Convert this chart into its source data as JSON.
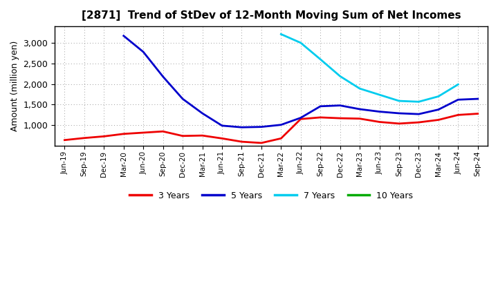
{
  "title": "[2871]  Trend of StDev of 12-Month Moving Sum of Net Incomes",
  "ylabel": "Amount (million yen)",
  "background_color": "#ffffff",
  "grid_color": "#999999",
  "ylim": [
    500,
    3400
  ],
  "yticks": [
    1000,
    1500,
    2000,
    2500,
    3000
  ],
  "x_labels": [
    "Jun-19",
    "Sep-19",
    "Dec-19",
    "Mar-20",
    "Jun-20",
    "Sep-20",
    "Dec-20",
    "Mar-21",
    "Jun-21",
    "Sep-21",
    "Dec-21",
    "Mar-22",
    "Jun-22",
    "Sep-22",
    "Dec-22",
    "Mar-23",
    "Jun-23",
    "Sep-23",
    "Dec-23",
    "Mar-24",
    "Jun-24",
    "Sep-24"
  ],
  "series": {
    "3 Years": {
      "color": "#ee0000",
      "values": [
        640,
        690,
        730,
        790,
        820,
        850,
        740,
        750,
        680,
        600,
        570,
        680,
        1150,
        1190,
        1170,
        1160,
        1080,
        1040,
        1070,
        1130,
        1250,
        1280
      ]
    },
    "5 Years": {
      "color": "#0000cc",
      "values": [
        null,
        null,
        null,
        3170,
        2780,
        2180,
        1640,
        1290,
        990,
        950,
        960,
        1010,
        1180,
        1460,
        1480,
        1390,
        1330,
        1290,
        1270,
        1380,
        1620,
        1640
      ]
    },
    "7 Years": {
      "color": "#00ccee",
      "values": [
        null,
        null,
        null,
        null,
        null,
        null,
        null,
        null,
        null,
        null,
        null,
        3210,
        3000,
        2600,
        2190,
        1890,
        1740,
        1590,
        1570,
        1700,
        1990,
        null
      ]
    },
    "10 Years": {
      "color": "#00aa00",
      "values": [
        null,
        null,
        null,
        null,
        null,
        null,
        null,
        null,
        null,
        null,
        null,
        null,
        null,
        null,
        null,
        null,
        null,
        null,
        null,
        null,
        null,
        null
      ]
    }
  },
  "legend_labels": [
    "3 Years",
    "5 Years",
    "7 Years",
    "10 Years"
  ],
  "legend_colors": [
    "#ee0000",
    "#0000cc",
    "#00ccee",
    "#00aa00"
  ]
}
